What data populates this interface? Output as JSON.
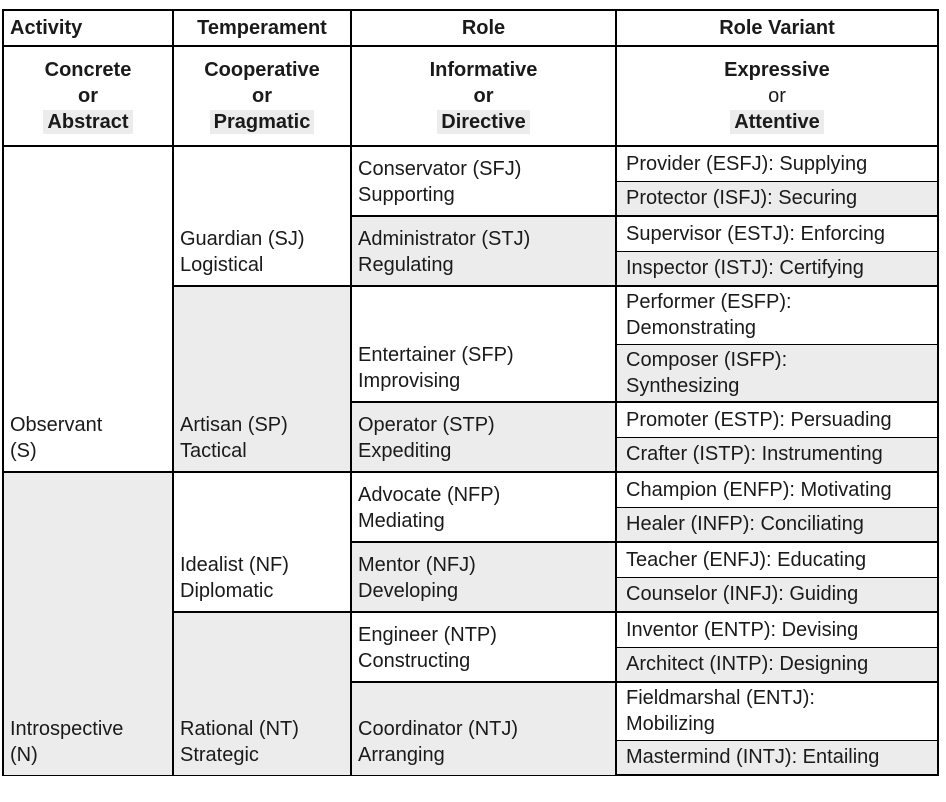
{
  "colors": {
    "page_background": "#ffffff",
    "cell_shade": "#ececec",
    "word_highlight": "#ececec",
    "border": "#000000",
    "text": "#1a1a1a"
  },
  "headers": {
    "columns": [
      "Activity",
      "Temperament",
      "Role",
      "Role Variant"
    ],
    "dichotomies": [
      {
        "first": "Concrete",
        "conj": "or",
        "second": "Abstract",
        "second_highlighted": true,
        "conj_bold": true
      },
      {
        "first": "Cooperative",
        "conj": "or",
        "second": "Pragmatic",
        "second_highlighted": true,
        "conj_bold": true
      },
      {
        "first": "Informative",
        "conj": "or",
        "second": "Directive",
        "second_highlighted": true,
        "conj_bold": true
      },
      {
        "first": "Expressive",
        "conj": "or",
        "second": "Attentive",
        "second_highlighted": true,
        "conj_bold": false
      }
    ]
  },
  "body": {
    "activities": [
      {
        "line1": "Observant",
        "line2": "(S)",
        "shaded": false
      },
      {
        "line1": "Introspective",
        "line2": "(N)",
        "shaded": true
      }
    ],
    "temperaments": [
      {
        "line1": "Guardian (SJ)",
        "line2": "Logistical",
        "shaded": false
      },
      {
        "line1": "Artisan (SP)",
        "line2": "Tactical",
        "shaded": true
      },
      {
        "line1": "Idealist (NF)",
        "line2": "Diplomatic",
        "shaded": false
      },
      {
        "line1": "Rational (NT)",
        "line2": "Strategic",
        "shaded": true
      }
    ],
    "roles": [
      {
        "line1": "Conservator (SFJ)",
        "line2": "Supporting",
        "shaded": false
      },
      {
        "line1": "Administrator (STJ)",
        "line2": "Regulating",
        "shaded": true
      },
      {
        "line1": "Entertainer (SFP)",
        "line2": "Improvising",
        "shaded": false
      },
      {
        "line1": "Operator (STP)",
        "line2": "Expediting",
        "shaded": true
      },
      {
        "line1": "Advocate (NFP)",
        "line2": "Mediating",
        "shaded": false
      },
      {
        "line1": "Mentor (NFJ)",
        "line2": "Developing",
        "shaded": true
      },
      {
        "line1": "Engineer (NTP)",
        "line2": "Constructing",
        "shaded": false
      },
      {
        "line1": "Coordinator (NTJ)",
        "line2": "Arranging",
        "shaded": true
      }
    ],
    "variants": [
      {
        "line1": "Provider (ESFJ): Supplying",
        "line2": "",
        "shaded": false
      },
      {
        "line1": "Protector (ISFJ): Securing",
        "line2": "",
        "shaded": true
      },
      {
        "line1": "Supervisor (ESTJ): Enforcing",
        "line2": "",
        "shaded": false
      },
      {
        "line1": "Inspector (ISTJ): Certifying",
        "line2": "",
        "shaded": true
      },
      {
        "line1": "Performer (ESFP):",
        "line2": "Demonstrating",
        "shaded": false
      },
      {
        "line1": "Composer (ISFP):",
        "line2": "Synthesizing",
        "shaded": true
      },
      {
        "line1": "Promoter (ESTP): Persuading",
        "line2": "",
        "shaded": false
      },
      {
        "line1": "Crafter (ISTP): Instrumenting",
        "line2": "",
        "shaded": true
      },
      {
        "line1": "Champion (ENFP): Motivating",
        "line2": "",
        "shaded": false
      },
      {
        "line1": "Healer (INFP): Conciliating",
        "line2": "",
        "shaded": true
      },
      {
        "line1": "Teacher (ENFJ): Educating",
        "line2": "",
        "shaded": false
      },
      {
        "line1": "Counselor (INFJ): Guiding",
        "line2": "",
        "shaded": true
      },
      {
        "line1": "Inventor (ENTP): Devising",
        "line2": "",
        "shaded": false
      },
      {
        "line1": "Architect (INTP): Designing",
        "line2": "",
        "shaded": true
      },
      {
        "line1": "Fieldmarshal (ENTJ):",
        "line2": "Mobilizing",
        "shaded": false
      },
      {
        "line1": "Mastermind (INTJ): Entailing",
        "line2": "",
        "shaded": true
      }
    ]
  }
}
